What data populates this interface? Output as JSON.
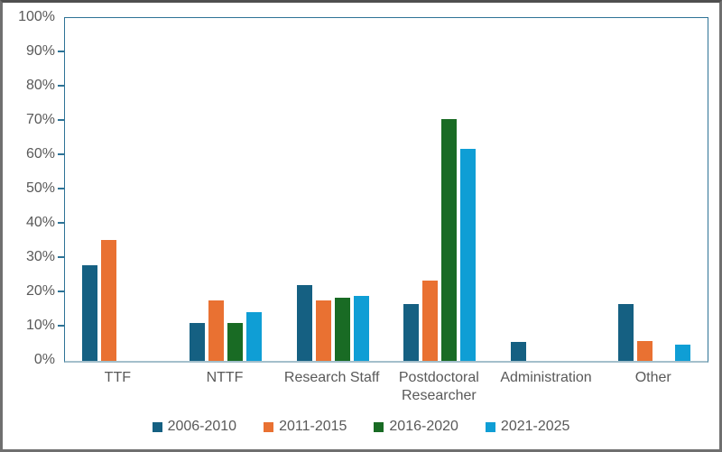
{
  "chart_data": {
    "type": "bar",
    "title": "",
    "xlabel": "",
    "ylabel": "",
    "categories": [
      "TTF",
      "NTTF",
      "Research Staff",
      "Postdoctoral Researcher",
      "Administration",
      "Other"
    ],
    "series": [
      {
        "name": "2006-2010",
        "color": "#156082",
        "values": [
          27.8,
          11.1,
          22.2,
          16.7,
          5.6,
          16.7
        ]
      },
      {
        "name": "2011-2015",
        "color": "#E97132",
        "values": [
          35.3,
          17.6,
          17.6,
          23.5,
          0,
          5.9
        ]
      },
      {
        "name": "2016-2020",
        "color": "#196B24",
        "values": [
          0,
          11.1,
          18.5,
          70.4,
          0,
          0
        ]
      },
      {
        "name": "2021-2025",
        "color": "#0F9ED5",
        "values": [
          0,
          14.3,
          19.0,
          61.9,
          0,
          4.8
        ]
      }
    ],
    "ylim": [
      0,
      100
    ],
    "ytick_step": 10,
    "ytick_labels": [
      "0%",
      "10%",
      "20%",
      "30%",
      "40%",
      "50%",
      "60%",
      "70%",
      "80%",
      "90%",
      "100%"
    ],
    "grid": false,
    "legend_position": "bottom"
  },
  "colors": {
    "plot_border": "#2e7396",
    "category_axis_line": "#a3bfcb",
    "tick_mark": "#2e7396",
    "axis_text": "#595959",
    "figure_border": "#6f6f6f",
    "background": "#ffffff"
  }
}
